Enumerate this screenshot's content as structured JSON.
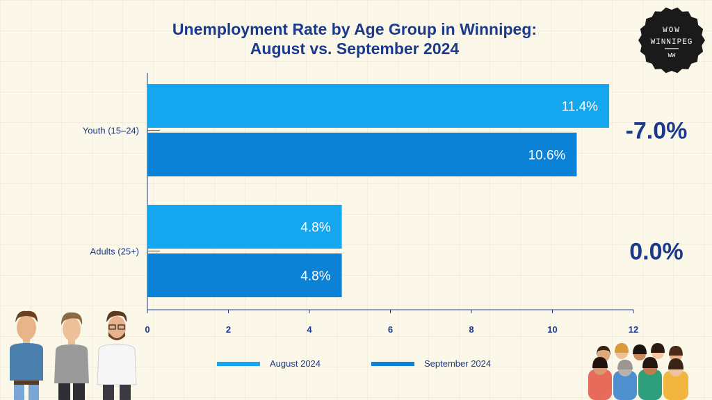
{
  "chart_data": {
    "type": "bar",
    "orientation": "horizontal",
    "title_line1": "Unemployment Rate by Age Group in Winnipeg:",
    "title_line2": "August vs. September 2024",
    "categories": [
      "Youth (15–24)",
      "Adults (25+)"
    ],
    "series": [
      {
        "name": "August 2024",
        "values": [
          11.4,
          4.8
        ],
        "labels": [
          "11.4%",
          "4.8%"
        ],
        "color": "#14a6ee"
      },
      {
        "name": "September 2024",
        "values": [
          10.6,
          4.8
        ],
        "labels": [
          "10.6%",
          "4.8%"
        ],
        "color": "#0c82d6"
      }
    ],
    "changes": [
      "-7.0%",
      "0.0%"
    ],
    "xlim": [
      0,
      12
    ],
    "xticks": [
      0,
      2,
      4,
      6,
      8,
      10,
      12
    ],
    "grid": false,
    "legend_position": "bottom"
  },
  "logo": {
    "line1": "WOW",
    "line2": "WINNIPEG",
    "line3": "WW"
  },
  "colors": {
    "title": "#1b3a8c",
    "axis": "#1b3a8c",
    "bar_label": "#ffffff",
    "background": "#fbf8ea"
  }
}
